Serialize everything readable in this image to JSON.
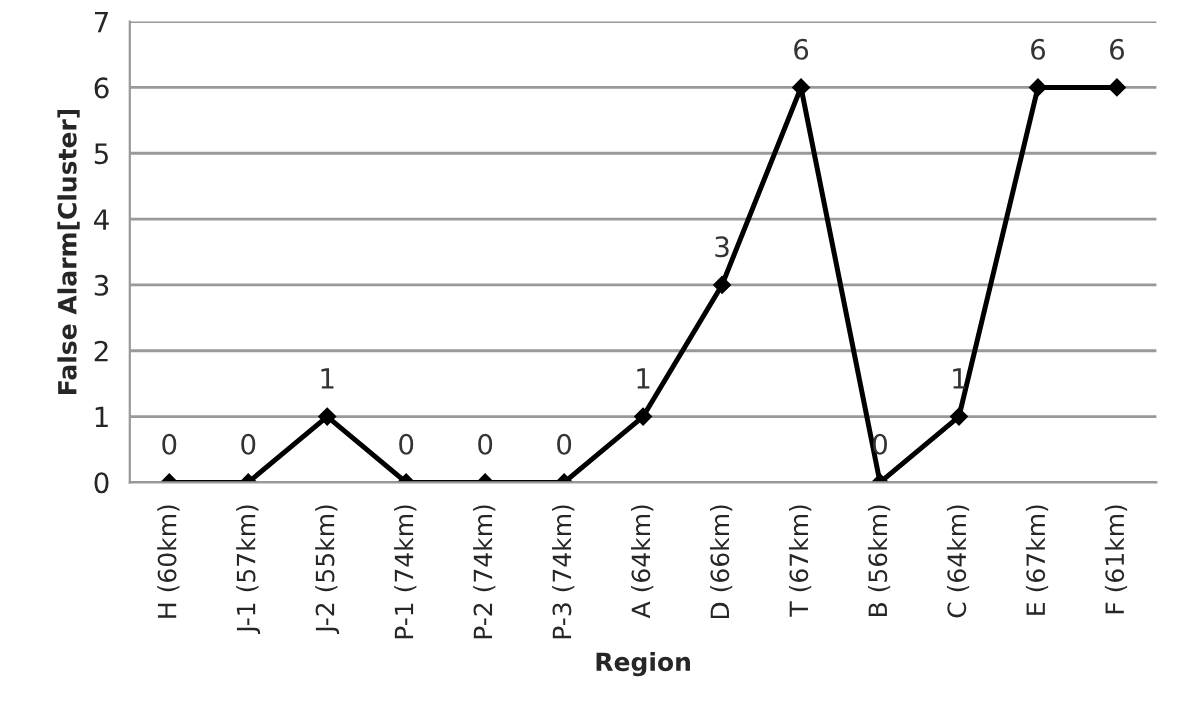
{
  "chart_data": {
    "type": "line",
    "xlabel": "Region",
    "ylabel": "False Alarm[Cluster]",
    "categories": [
      "H (60km)",
      "J-1 (57km)",
      "J-2 (55km)",
      "P-1 (74km)",
      "P-2 (74km)",
      "P-3 (74km)",
      "A (64km)",
      "D (66km)",
      "T (67km)",
      "B (56km)",
      "C (64km)",
      "E (67km)",
      "F (61km)"
    ],
    "series": [
      {
        "color": "#000000",
        "values": [
          0,
          0,
          1,
          0,
          0,
          0,
          1,
          3,
          6,
          0,
          1,
          6,
          6
        ]
      }
    ],
    "ylim": [
      0,
      7
    ],
    "yticks": [
      0,
      1,
      2,
      3,
      4,
      5,
      6,
      7
    ],
    "grid": "y",
    "marker": "diamond",
    "line_style": "solid",
    "data_labels": true
  }
}
